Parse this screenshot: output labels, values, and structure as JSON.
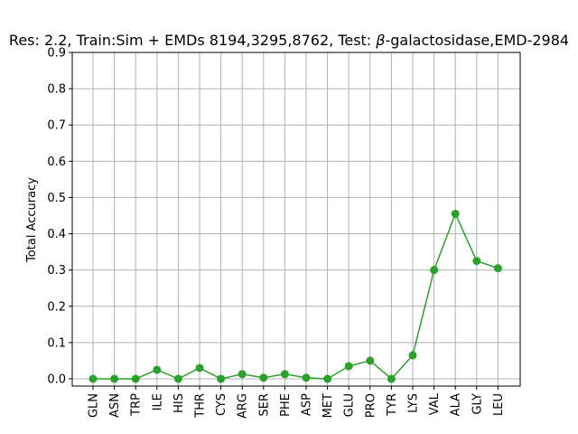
{
  "chart_data": {
    "type": "line",
    "title": "Res: 2.2,  Train:Sim + EMDs 8194,3295,8762, Test: β-galactosidase,EMD-2984",
    "title_parts": {
      "prefix": "Res: 2.2,  Train:Sim + EMDs 8194,3295,8762, Test: ",
      "beta": "β",
      "suffix": "-galactosidase,EMD-2984"
    },
    "xlabel": "",
    "ylabel": "Total Accuracy",
    "ylim": [
      -0.02,
      0.9
    ],
    "yticks": [
      "0.0",
      "0.1",
      "0.2",
      "0.3",
      "0.4",
      "0.5",
      "0.6",
      "0.7",
      "0.8",
      "0.9"
    ],
    "grid": true,
    "categories": [
      "GLN",
      "ASN",
      "TRP",
      "ILE",
      "HIS",
      "THR",
      "CYS",
      "ARG",
      "SER",
      "PHE",
      "ASP",
      "MET",
      "GLU",
      "PRO",
      "TYR",
      "LYS",
      "VAL",
      "ALA",
      "GLY",
      "LEU"
    ],
    "series": [
      {
        "color": "#2ca02c",
        "values": [
          0.0,
          0.0,
          0.0,
          0.025,
          0.0,
          0.03,
          0.0,
          0.013,
          0.003,
          0.013,
          0.003,
          0.0,
          0.035,
          0.05,
          0.0,
          0.065,
          0.3,
          0.455,
          0.325,
          0.305
        ]
      }
    ]
  }
}
